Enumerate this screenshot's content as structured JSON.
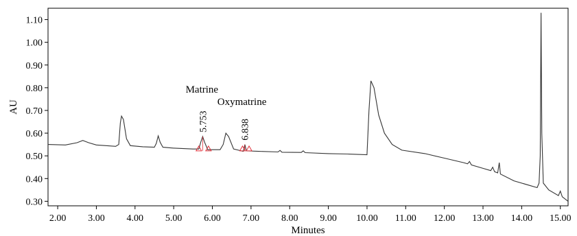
{
  "chart_data": {
    "type": "line",
    "xlabel": "Minutes",
    "ylabel": "AU",
    "xlim": [
      1.75,
      15.2
    ],
    "ylim": [
      0.28,
      1.15
    ],
    "x_ticks": [
      "2.00",
      "3.00",
      "4.00",
      "5.00",
      "6.00",
      "7.00",
      "8.00",
      "9.00",
      "10.00",
      "11.00",
      "12.00",
      "13.00",
      "14.00",
      "15.00"
    ],
    "y_ticks": [
      "0.30",
      "0.40",
      "0.50",
      "0.60",
      "0.70",
      "0.80",
      "0.90",
      "1.00",
      "1.10"
    ],
    "grid": false,
    "line_color": "#333333",
    "marker_color": "#e0303a",
    "series": [
      {
        "points": [
          [
            1.75,
            0.55
          ],
          [
            2.2,
            0.548
          ],
          [
            2.5,
            0.558
          ],
          [
            2.65,
            0.568
          ],
          [
            2.8,
            0.558
          ],
          [
            3.0,
            0.548
          ],
          [
            3.5,
            0.542
          ],
          [
            3.58,
            0.55
          ],
          [
            3.62,
            0.645
          ],
          [
            3.65,
            0.675
          ],
          [
            3.7,
            0.66
          ],
          [
            3.78,
            0.575
          ],
          [
            3.88,
            0.545
          ],
          [
            4.2,
            0.54
          ],
          [
            4.5,
            0.538
          ],
          [
            4.55,
            0.555
          ],
          [
            4.6,
            0.588
          ],
          [
            4.65,
            0.56
          ],
          [
            4.72,
            0.538
          ],
          [
            5.0,
            0.534
          ],
          [
            5.5,
            0.53
          ],
          [
            5.65,
            0.53
          ],
          [
            5.7,
            0.56
          ],
          [
            5.75,
            0.585
          ],
          [
            5.8,
            0.56
          ],
          [
            5.88,
            0.527
          ],
          [
            6.2,
            0.527
          ],
          [
            6.28,
            0.55
          ],
          [
            6.35,
            0.6
          ],
          [
            6.42,
            0.585
          ],
          [
            6.55,
            0.53
          ],
          [
            6.8,
            0.52
          ],
          [
            6.84,
            0.55
          ],
          [
            6.88,
            0.522
          ],
          [
            7.2,
            0.52
          ],
          [
            7.7,
            0.517
          ],
          [
            7.75,
            0.524
          ],
          [
            7.8,
            0.516
          ],
          [
            8.3,
            0.515
          ],
          [
            8.35,
            0.522
          ],
          [
            8.4,
            0.514
          ],
          [
            9.0,
            0.51
          ],
          [
            9.5,
            0.508
          ],
          [
            10.0,
            0.505
          ],
          [
            10.05,
            0.7
          ],
          [
            10.1,
            0.83
          ],
          [
            10.18,
            0.8
          ],
          [
            10.3,
            0.68
          ],
          [
            10.45,
            0.6
          ],
          [
            10.65,
            0.55
          ],
          [
            10.9,
            0.525
          ],
          [
            11.5,
            0.51
          ],
          [
            12.0,
            0.49
          ],
          [
            12.5,
            0.47
          ],
          [
            12.6,
            0.465
          ],
          [
            12.65,
            0.475
          ],
          [
            12.7,
            0.46
          ],
          [
            13.0,
            0.445
          ],
          [
            13.2,
            0.435
          ],
          [
            13.25,
            0.45
          ],
          [
            13.3,
            0.43
          ],
          [
            13.38,
            0.425
          ],
          [
            13.42,
            0.47
          ],
          [
            13.45,
            0.42
          ],
          [
            13.8,
            0.39
          ],
          [
            14.2,
            0.37
          ],
          [
            14.4,
            0.36
          ],
          [
            14.45,
            0.38
          ],
          [
            14.48,
            0.5
          ],
          [
            14.5,
            1.13
          ],
          [
            14.52,
            0.6
          ],
          [
            14.56,
            0.38
          ],
          [
            14.7,
            0.35
          ],
          [
            14.95,
            0.325
          ],
          [
            15.0,
            0.345
          ],
          [
            15.05,
            0.32
          ],
          [
            15.2,
            0.3
          ]
        ]
      }
    ],
    "peaks": [
      {
        "name": "Matrine",
        "rt": "5.753",
        "x": 5.753,
        "y": 0.585,
        "bounds": [
          5.65,
          5.9
        ]
      },
      {
        "name": "Oxymatrine",
        "rt": "6.838",
        "x": 6.838,
        "y": 0.55,
        "bounds": [
          6.78,
          6.95
        ]
      }
    ]
  }
}
